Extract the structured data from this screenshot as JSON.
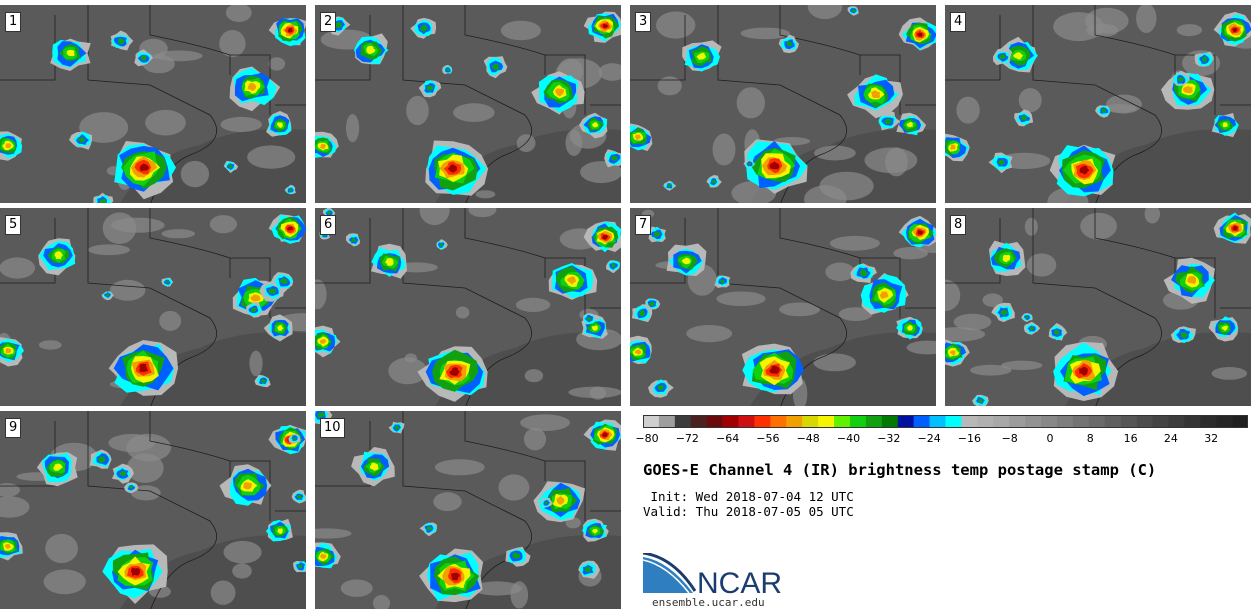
{
  "title": "GOES-E Channel 4 (IR) brightness temp postage stamp (C)",
  "init_text": " Init: Wed 2018-07-04 12 UTC",
  "valid_text": "Valid: Thu 2018-07-05 05 UTC",
  "logo": {
    "text": "NCAR",
    "url": "ensemble.ucar.edu"
  },
  "colorbar": {
    "ticks": [
      "−80",
      "−72",
      "−64",
      "−56",
      "−48",
      "−40",
      "−32",
      "−24",
      "−16",
      "−8",
      "0",
      "8",
      "16",
      "24",
      "32"
    ],
    "colors": [
      "#cfcfcf",
      "#9e9e9e",
      "#3c3c3c",
      "#4a2020",
      "#6a0a0a",
      "#a00000",
      "#d01010",
      "#ff3000",
      "#ff7000",
      "#f0a000",
      "#d8d800",
      "#f5f500",
      "#60f000",
      "#10d010",
      "#10a010",
      "#007a00",
      "#0010a0",
      "#0060ff",
      "#00c0ff",
      "#00ffff",
      "#b8b8b8",
      "#b0b0b0",
      "#a8a8a8",
      "#9c9c9c",
      "#929292",
      "#888888",
      "#7e7e7e",
      "#747474",
      "#6a6a6a",
      "#606060",
      "#565656",
      "#4c4c4c",
      "#444444",
      "#3c3c3c",
      "#343434",
      "#2c2c2c",
      "#262626",
      "#202020"
    ]
  },
  "panels": [
    {
      "label": "1"
    },
    {
      "label": "2"
    },
    {
      "label": "3"
    },
    {
      "label": "4"
    },
    {
      "label": "5"
    },
    {
      "label": "6"
    },
    {
      "label": "7"
    },
    {
      "label": "8"
    },
    {
      "label": "9"
    },
    {
      "label": "10"
    }
  ]
}
